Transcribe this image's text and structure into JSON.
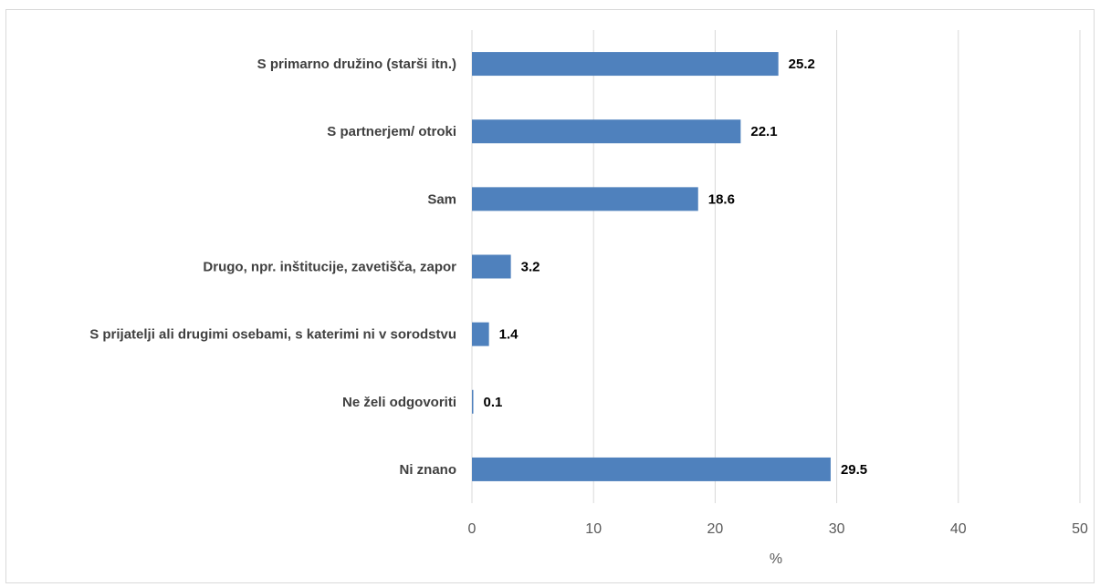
{
  "chart_data": {
    "type": "bar",
    "orientation": "horizontal",
    "categories": [
      "S primarno družino (starši itn.)",
      "S partnerjem/ otroki",
      "Sam",
      "Drugo, npr. inštitucije, zavetišča, zapor",
      "S prijatelji ali drugimi osebami, s katerimi ni v sorodstvu",
      "Ne želi odgovoriti",
      "Ni znano"
    ],
    "values": [
      25.2,
      22.1,
      18.6,
      3.2,
      1.4,
      0.1,
      29.5
    ],
    "value_labels": [
      "25.2",
      "22.1",
      "18.6",
      "3.2",
      "1.4",
      "0.1",
      "29.5"
    ],
    "x_ticks": [
      "0",
      "10",
      "20",
      "30",
      "40",
      "50"
    ],
    "xlim": [
      0,
      50
    ],
    "xlabel": "%",
    "ylabel": "",
    "grid": "vertical",
    "bar_color": "#4f81bd"
  }
}
